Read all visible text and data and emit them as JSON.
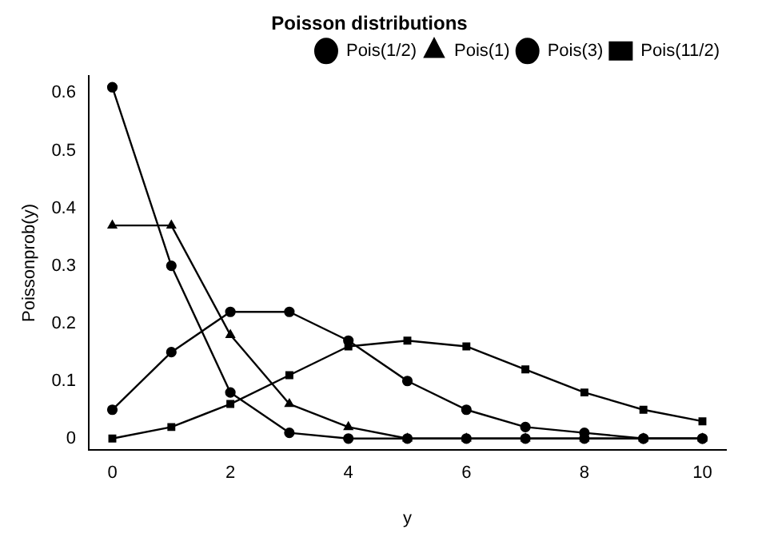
{
  "chart_data": {
    "type": "line",
    "title": "Poisson distributions",
    "xlabel": "y",
    "ylabel": "Poissonprob(y)",
    "x": [
      0,
      1,
      2,
      3,
      4,
      5,
      6,
      7,
      8,
      9,
      10
    ],
    "xlim": [
      -0.4,
      10.4
    ],
    "xticks": [
      0,
      2,
      4,
      6,
      8,
      10
    ],
    "ylim": [
      -0.02,
      0.63
    ],
    "yticks": [
      0,
      0.1,
      0.2,
      0.3,
      0.4,
      0.5,
      0.6
    ],
    "grid": false,
    "legend": "top right",
    "line_style": "solid",
    "series": [
      {
        "name": "Pois(1/2)",
        "color": "#000000",
        "marker": "circle",
        "values": [
          0.61,
          0.3,
          0.08,
          0.01,
          0,
          0,
          0,
          0,
          0,
          0,
          0
        ]
      },
      {
        "name": "Pois(1)",
        "color": "#000000",
        "marker": "triangle",
        "values": [
          0.37,
          0.37,
          0.18,
          0.06,
          0.02,
          0,
          0,
          0,
          0,
          0,
          0
        ]
      },
      {
        "name": "Pois(3)",
        "color": "#000000",
        "marker": "circle",
        "values": [
          0.05,
          0.15,
          0.22,
          0.22,
          0.17,
          0.1,
          0.05,
          0.02,
          0.01,
          0,
          0
        ]
      },
      {
        "name": "Pois(11/2)",
        "color": "#000000",
        "marker": "square",
        "values": [
          0,
          0.02,
          0.06,
          0.11,
          0.16,
          0.17,
          0.16,
          0.12,
          0.08,
          0.05,
          0.03
        ]
      }
    ]
  }
}
